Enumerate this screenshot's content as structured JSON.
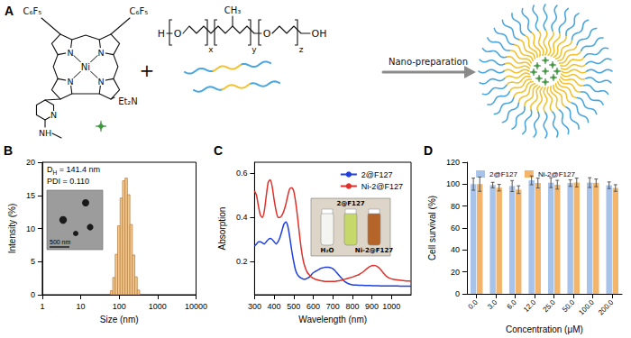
{
  "panel_a": {
    "label": "A",
    "complex": {
      "substituents": [
        "C₆F₅",
        "C₆F₅"
      ],
      "ring_atoms": [
        "N",
        "N",
        "N",
        "N"
      ],
      "metal": "Ni",
      "amine": "Et₂N",
      "pyridine_atom": "N",
      "methylamine": "NH"
    },
    "polymer": {
      "texts": [
        "H",
        "O",
        "x",
        "y",
        "CH₃",
        "O",
        "z",
        "OH"
      ]
    },
    "plus": "+",
    "arrow_label": "Nano-preparation"
  },
  "chart_data": [
    {
      "panel": "B",
      "type": "histogram",
      "x_label": "Size (nm)",
      "y_label": "Intensity (%)",
      "log": "x",
      "bins": [
        58.8,
        68.1,
        78.9,
        91.3,
        105.8,
        122.5,
        141.8,
        164.2,
        190.2,
        220.2,
        255.0,
        295.3,
        342.0
      ],
      "values": [
        0.6,
        2.6,
        6.1,
        10.4,
        14.6,
        17.2,
        17.6,
        15.1,
        10.6,
        6.0,
        2.7,
        0.7
      ],
      "color": "#f5c98a",
      "xlim": [
        1,
        10000
      ],
      "xticks": [
        1,
        10,
        100,
        1000,
        10000
      ],
      "ylim": [
        0,
        20
      ],
      "yticks": [
        0,
        5,
        10,
        15,
        20
      ],
      "grid": false,
      "annotations": [
        {
          "text": "D",
          "subscript": "H",
          "after": " = 141.4 nm"
        },
        {
          "text": "PDI = 0.110"
        },
        {
          "text": "500 nm"
        }
      ]
    },
    {
      "panel": "C",
      "type": "line",
      "x_label": "Wavelength (nm)",
      "y_label": "Absorption",
      "x": [
        300,
        310,
        320,
        330,
        340,
        350,
        360,
        370,
        380,
        390,
        400,
        410,
        420,
        430,
        440,
        450,
        460,
        470,
        480,
        490,
        500,
        510,
        520,
        530,
        540,
        550,
        560,
        570,
        580,
        590,
        600,
        610,
        620,
        630,
        640,
        650,
        660,
        670,
        680,
        690,
        700,
        710,
        720,
        730,
        740,
        750,
        760,
        770,
        780,
        790,
        800,
        810,
        820,
        830,
        840,
        850,
        860,
        870,
        880,
        890,
        900,
        910,
        920,
        930,
        940,
        950,
        960,
        970,
        980,
        990,
        1000,
        1010,
        1020,
        1030,
        1040,
        1050,
        1060,
        1070,
        1080,
        1090,
        1100
      ],
      "series": [
        {
          "name": "2@F127",
          "color": "#1f3fe0",
          "values": [
            0.27,
            0.28,
            0.29,
            0.29,
            0.285,
            0.28,
            0.29,
            0.3,
            0.305,
            0.3,
            0.29,
            0.28,
            0.29,
            0.31,
            0.34,
            0.37,
            0.38,
            0.36,
            0.31,
            0.25,
            0.2,
            0.16,
            0.14,
            0.13,
            0.125,
            0.12,
            0.12,
            0.125,
            0.13,
            0.14,
            0.15,
            0.155,
            0.16,
            0.165,
            0.17,
            0.172,
            0.175,
            0.175,
            0.175,
            0.172,
            0.168,
            0.16,
            0.15,
            0.14,
            0.13,
            0.12,
            0.11,
            0.105,
            0.1,
            0.097,
            0.095,
            0.094,
            0.094,
            0.093,
            0.093,
            0.093,
            0.092,
            0.092,
            0.092,
            0.092,
            0.091,
            0.091,
            0.091,
            0.091,
            0.09,
            0.09,
            0.09,
            0.09,
            0.09,
            0.09,
            0.09,
            0.09,
            0.09,
            0.09,
            0.089,
            0.089,
            0.089,
            0.089,
            0.089,
            0.089,
            0.089
          ]
        },
        {
          "name": "Ni-2@F127",
          "color": "#e0302a",
          "values": [
            0.52,
            0.5,
            0.45,
            0.41,
            0.4,
            0.43,
            0.5,
            0.56,
            0.57,
            0.54,
            0.48,
            0.43,
            0.4,
            0.4,
            0.41,
            0.43,
            0.46,
            0.5,
            0.53,
            0.535,
            0.52,
            0.47,
            0.4,
            0.32,
            0.25,
            0.2,
            0.17,
            0.15,
            0.14,
            0.13,
            0.125,
            0.12,
            0.118,
            0.115,
            0.113,
            0.112,
            0.11,
            0.11,
            0.11,
            0.11,
            0.11,
            0.11,
            0.112,
            0.113,
            0.115,
            0.117,
            0.12,
            0.122,
            0.125,
            0.128,
            0.13,
            0.133,
            0.137,
            0.14,
            0.145,
            0.15,
            0.157,
            0.165,
            0.172,
            0.178,
            0.182,
            0.183,
            0.181,
            0.176,
            0.168,
            0.158,
            0.147,
            0.137,
            0.13,
            0.125,
            0.122,
            0.12,
            0.118,
            0.117,
            0.116,
            0.115,
            0.114,
            0.113,
            0.112,
            0.112,
            0.111
          ]
        }
      ],
      "xlim": [
        300,
        1100
      ],
      "xticks": [
        300,
        400,
        500,
        600,
        700,
        800,
        900,
        1000
      ],
      "ylim": [
        0.05,
        0.65
      ],
      "yticks": [
        0.2,
        0.4,
        0.6
      ],
      "grid": false,
      "legend": "top-right",
      "annotations": [
        {
          "text": "2@F127"
        },
        {
          "text": "H₂O"
        },
        {
          "text": "Ni-2@F127"
        }
      ]
    },
    {
      "panel": "D",
      "type": "bar",
      "x_label": "Concentration (μM)",
      "y_label": "Cell survival (%)",
      "categories": [
        "0.0",
        "3.0",
        "6.0",
        "12.0",
        "25.0",
        "50.0",
        "100.0",
        "200.0"
      ],
      "series": [
        {
          "name": "2@F127",
          "color": "#a8c3ea",
          "values": [
            100.0,
            99.2,
            98.3,
            103.5,
            101.4,
            101.0,
            101.4,
            99.0
          ],
          "errors": [
            5.5,
            2.5,
            5.0,
            4.0,
            4.5,
            3.0,
            4.5,
            3.0
          ]
        },
        {
          "name": "Ni-2@F127",
          "color": "#f2b56b",
          "values": [
            100.0,
            96.8,
            95.0,
            101.0,
            99.5,
            101.5,
            101.2,
            96.5
          ],
          "errors": [
            6.5,
            3.0,
            3.5,
            4.5,
            4.0,
            4.0,
            3.5,
            3.0
          ]
        }
      ],
      "ylim": [
        0,
        120
      ],
      "yticks": [
        0,
        20,
        40,
        60,
        80,
        100,
        120
      ],
      "grid": false,
      "legend": "top"
    }
  ]
}
